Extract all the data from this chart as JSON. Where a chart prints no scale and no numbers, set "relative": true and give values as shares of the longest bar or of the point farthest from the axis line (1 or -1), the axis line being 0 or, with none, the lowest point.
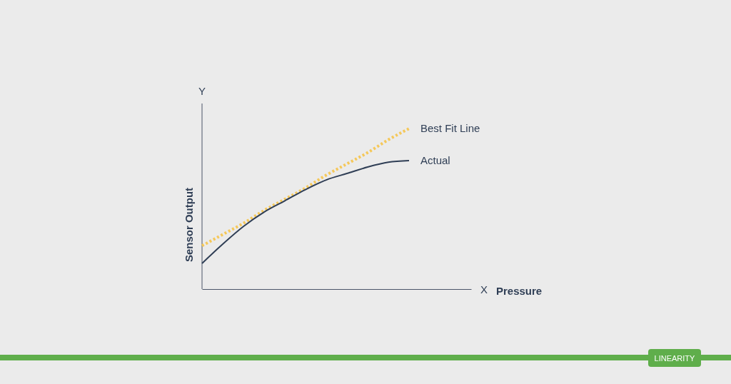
{
  "chart_data": {
    "type": "line",
    "relative": true,
    "xlabel": "Pressure",
    "ylabel": "Sensor Output",
    "annotations": [
      "Y",
      "X",
      "LINEARITY"
    ],
    "categories": [
      null,
      null,
      null,
      null,
      null,
      null,
      null,
      null,
      null,
      null,
      null,
      null,
      null,
      null
    ],
    "series": [
      {
        "name": "Best Fit Line",
        "color": "#f5c85a",
        "line_style": "dotted",
        "values": [
          0.27,
          0.34,
          0.41,
          0.49,
          0.56,
          0.63,
          0.71,
          0.78,
          0.85,
          0.93,
          1.0,
          null,
          null,
          null
        ]
      },
      {
        "name": "Actual",
        "color": "#2f3e55",
        "line_style": "solid",
        "values": [
          0.16,
          0.28,
          0.39,
          0.48,
          0.55,
          0.62,
          0.68,
          0.72,
          0.76,
          0.79,
          0.8,
          null,
          null,
          null
        ]
      }
    ],
    "marker": "none"
  }
}
